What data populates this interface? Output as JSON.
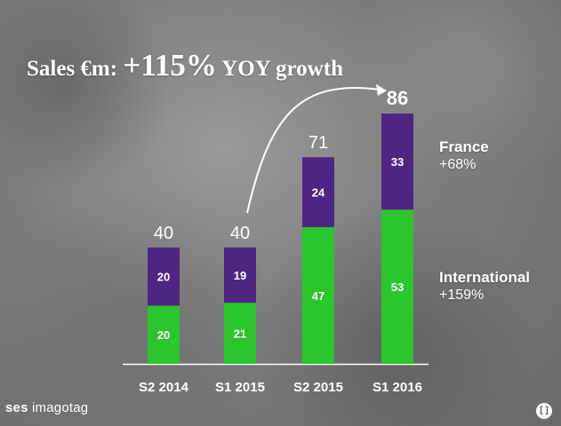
{
  "headline": {
    "lead": "Sales €m: ",
    "percent": "+115%",
    "rest": " YOY growth"
  },
  "legend": {
    "france": {
      "label": "France",
      "growth": "+68%"
    },
    "international": {
      "label": "International",
      "growth": "+159%"
    }
  },
  "logo": {
    "part1": "ses",
    "part2": "imagotag"
  },
  "page_icon": "bracket-icon",
  "colors": {
    "france": "#4f2584",
    "international": "#2bc62b",
    "baseline": "#ffffff",
    "text": "#ffffff"
  },
  "chart_data": {
    "type": "bar",
    "stacked": true,
    "title": "Sales €m: +115% YOY growth",
    "categories": [
      "S2 2014",
      "S1 2015",
      "S2 2015",
      "S1 2016"
    ],
    "series": [
      {
        "name": "International",
        "values": [
          20,
          21,
          47,
          53
        ],
        "color": "#2bc62b"
      },
      {
        "name": "France",
        "values": [
          20,
          19,
          24,
          33
        ],
        "color": "#4f2584"
      }
    ],
    "totals": [
      40,
      40,
      71,
      86
    ],
    "total_labels": [
      "40",
      "40",
      "71",
      "86"
    ],
    "ylim": [
      0,
      86
    ],
    "grid": false,
    "legend": "right",
    "annotation": "curved arrow from S1 2015 total to S1 2016 total"
  }
}
